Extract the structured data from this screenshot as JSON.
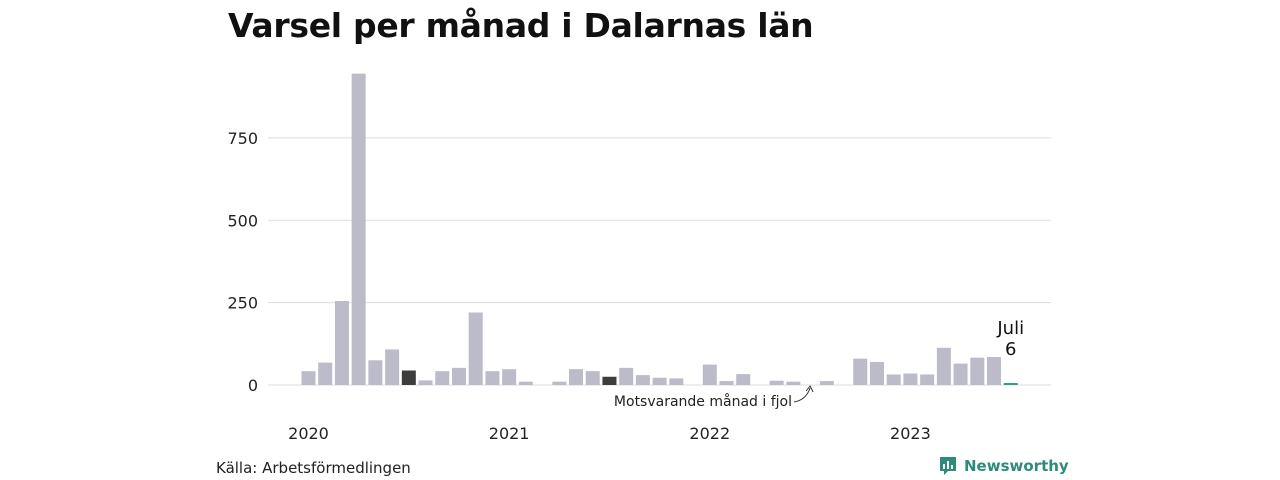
{
  "title": "Varsel per månad i Dalarnas län",
  "source": "Källa: Arbetsförmedlingen",
  "brand": {
    "name": "Newsworthy",
    "icon": "newsworthy-logo-icon"
  },
  "colors": {
    "bar_default": "#bcbbc9",
    "bar_same_month": "#3d3d3d",
    "bar_current": "#2a9d8f",
    "grid": "#dddddd",
    "brand": "#2e8b7a"
  },
  "chart_data": {
    "type": "bar",
    "title": "Varsel per månad i Dalarnas län",
    "xlabel": "",
    "ylabel": "",
    "ylim": [
      0,
      950
    ],
    "yticks": [
      0,
      250,
      500,
      750
    ],
    "grid": true,
    "x_tick_labels": [
      {
        "label": "2020",
        "at": "2020-01"
      },
      {
        "label": "2021",
        "at": "2021-01"
      },
      {
        "label": "2022",
        "at": "2022-01"
      },
      {
        "label": "2023",
        "at": "2023-01"
      }
    ],
    "categories": [
      "2020-01",
      "2020-02",
      "2020-03",
      "2020-04",
      "2020-05",
      "2020-06",
      "2020-07",
      "2020-08",
      "2020-09",
      "2020-10",
      "2020-11",
      "2020-12",
      "2021-01",
      "2021-02",
      "2021-03",
      "2021-04",
      "2021-05",
      "2021-06",
      "2021-07",
      "2021-08",
      "2021-09",
      "2021-10",
      "2021-11",
      "2021-12",
      "2022-01",
      "2022-02",
      "2022-03",
      "2022-04",
      "2022-05",
      "2022-06",
      "2022-07",
      "2022-08",
      "2022-09",
      "2022-10",
      "2022-11",
      "2022-12",
      "2023-01",
      "2023-02",
      "2023-03",
      "2023-04",
      "2023-05",
      "2023-06",
      "2023-07"
    ],
    "values": [
      42,
      68,
      255,
      945,
      75,
      108,
      44,
      14,
      42,
      52,
      220,
      42,
      48,
      10,
      0,
      10,
      48,
      42,
      25,
      52,
      30,
      22,
      20,
      0,
      62,
      12,
      33,
      0,
      13,
      10,
      0,
      12,
      0,
      80,
      70,
      32,
      35,
      32,
      113,
      65,
      83,
      85,
      6
    ],
    "highlight": {
      "same_month_previous_years": [
        "2020-07",
        "2021-07",
        "2022-07"
      ],
      "current": "2023-07"
    },
    "annotations": {
      "current_label": "Juli",
      "current_value": "6",
      "same_month_note": "Motsvarande månad i fjol"
    }
  }
}
